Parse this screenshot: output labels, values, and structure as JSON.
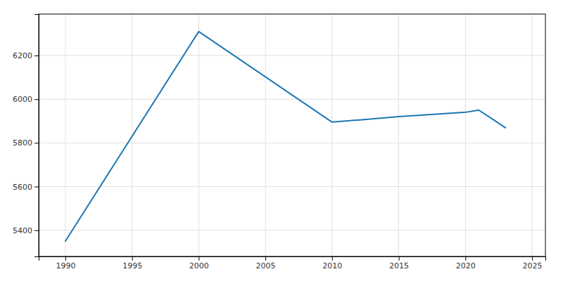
{
  "chart_data": {
    "type": "line",
    "x": [
      1990,
      2000,
      2010,
      2015,
      2020,
      2021,
      2022,
      2023
    ],
    "values": [
      5350,
      6310,
      5895,
      5920,
      5940,
      5950,
      5910,
      5869
    ],
    "xlim": [
      1988,
      2026
    ],
    "ylim": [
      5280,
      6390
    ],
    "xticks": [
      1990,
      1995,
      2000,
      2005,
      2010,
      2015,
      2020,
      2025
    ],
    "yticks": [
      5400,
      5600,
      5800,
      6000,
      6200
    ],
    "grid": true
  }
}
